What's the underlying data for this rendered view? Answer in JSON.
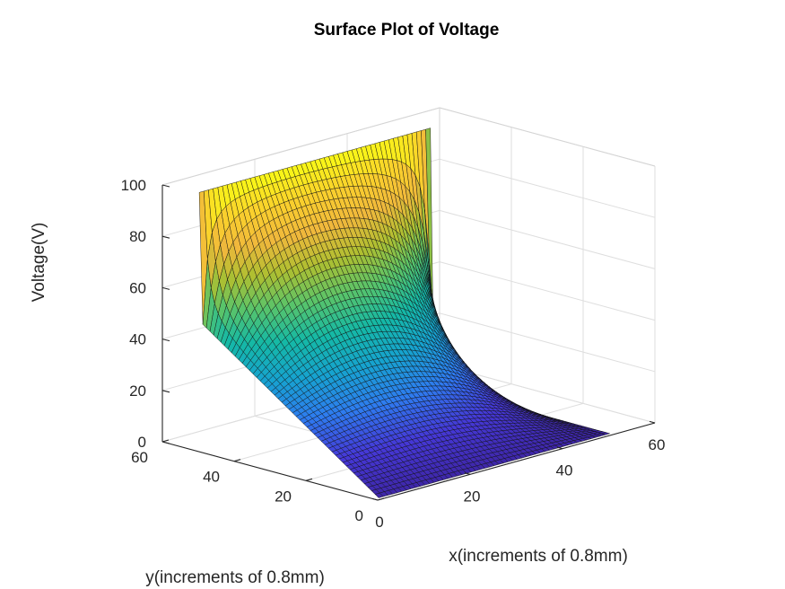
{
  "chart_data": {
    "type": "surface",
    "title": "Surface Plot of Voltage",
    "xlabel": "x(increments of 0.8mm)",
    "ylabel": "y(increments of 0.8mm)",
    "zlabel": "Voltage(V)",
    "xlim": [
      0,
      60
    ],
    "ylim": [
      0,
      60
    ],
    "zlim": [
      0,
      100
    ],
    "xticks": [
      "0",
      "20",
      "40",
      "60"
    ],
    "yticks": [
      "0",
      "20",
      "40",
      "60"
    ],
    "zticks": [
      "0",
      "20",
      "40",
      "60",
      "80",
      "100"
    ],
    "x_range": [
      1,
      51
    ],
    "y_range": [
      1,
      51
    ],
    "boundary_conditions": {
      "edge_y_max": 100,
      "edge_x_min_peak": 50,
      "other_edges": 0
    },
    "grid": true,
    "colormap": "parula",
    "colormap_stops": [
      "#3e26a8",
      "#4538d7",
      "#2e7cf0",
      "#16a3cf",
      "#15b9a5",
      "#59c46a",
      "#aebf31",
      "#f0b83c",
      "#fad12c",
      "#f9fb15"
    ]
  }
}
